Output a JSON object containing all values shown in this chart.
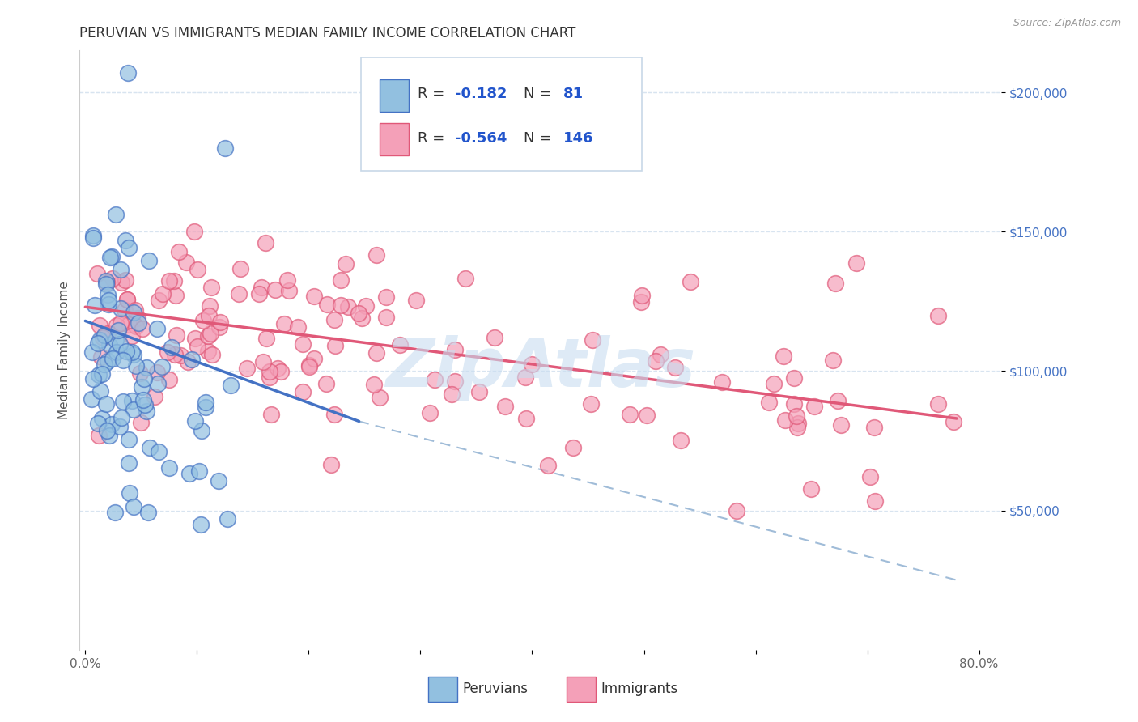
{
  "title": "PERUVIAN VS IMMIGRANTS MEDIAN FAMILY INCOME CORRELATION CHART",
  "source": "Source: ZipAtlas.com",
  "ylabel": "Median Family Income",
  "y_ticks": [
    50000,
    100000,
    150000,
    200000
  ],
  "y_tick_labels": [
    "$50,000",
    "$100,000",
    "$150,000",
    "$200,000"
  ],
  "x_ticks": [
    0.0,
    0.1,
    0.2,
    0.3,
    0.4,
    0.5,
    0.6,
    0.7,
    0.8
  ],
  "x_tick_labels": [
    "0.0%",
    "",
    "",
    "",
    "",
    "",
    "",
    "",
    "80.0%"
  ],
  "x_lim": [
    -0.005,
    0.82
  ],
  "y_lim": [
    0,
    215000
  ],
  "blue_color": "#92c0e0",
  "pink_color": "#f4a0b8",
  "blue_line_color": "#4472c4",
  "pink_line_color": "#e05878",
  "dashed_line_color": "#a0bcd8",
  "title_color": "#333333",
  "source_color": "#999999",
  "tick_color_y": "#4472c4",
  "tick_color_x": "#666666",
  "grid_color": "#d8e4f0",
  "watermark": "ZipAtlas",
  "watermark_color": "#c8ddf0",
  "peruvian_label": "Peruvians",
  "immigrant_label": "Immigrants",
  "legend_R_blue": "-0.182",
  "legend_N_blue": "81",
  "legend_R_pink": "-0.564",
  "legend_N_pink": "146",
  "blue_line_x": [
    0.0,
    0.245
  ],
  "blue_line_y": [
    118000,
    82000
  ],
  "pink_line_x": [
    0.0,
    0.78
  ],
  "pink_line_y": [
    123000,
    83000
  ],
  "dash_line_x": [
    0.245,
    0.78
  ],
  "dash_line_y": [
    82000,
    25000
  ],
  "title_fontsize": 12,
  "source_fontsize": 9,
  "tick_fontsize": 11,
  "ylabel_fontsize": 11,
  "legend_fontsize": 13,
  "watermark_fontsize": 60
}
